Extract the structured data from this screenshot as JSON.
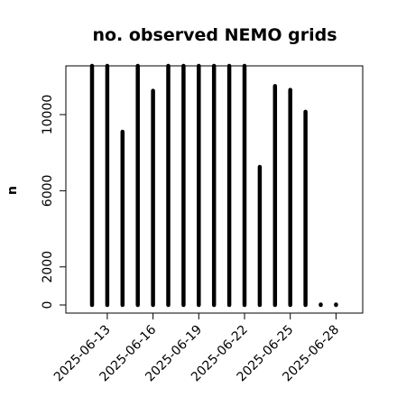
{
  "chart_data": {
    "type": "bar",
    "title": "no. observed NEMO grids",
    "xlabel": "",
    "ylabel": "n",
    "ylim": [
      0,
      12500
    ],
    "y_ticks": [
      0,
      2000,
      6000,
      10000
    ],
    "x_tick_labels": [
      "2025-06-13",
      "2025-06-16",
      "2025-06-19",
      "2025-06-22",
      "2025-06-25",
      "2025-06-28"
    ],
    "categories": [
      "2025-06-12",
      "2025-06-13",
      "2025-06-14",
      "2025-06-15",
      "2025-06-16",
      "2025-06-17",
      "2025-06-18",
      "2025-06-19",
      "2025-06-20",
      "2025-06-21",
      "2025-06-22",
      "2025-06-23",
      "2025-06-24",
      "2025-06-25",
      "2025-06-26",
      "2025-06-27",
      "2025-06-28"
    ],
    "values": [
      12600,
      12600,
      9100,
      12600,
      11250,
      12600,
      12600,
      12600,
      12600,
      12600,
      12600,
      7250,
      11500,
      11300,
      10150,
      0,
      0
    ],
    "grid": false,
    "legend": "none",
    "bar_color": "#000000"
  }
}
